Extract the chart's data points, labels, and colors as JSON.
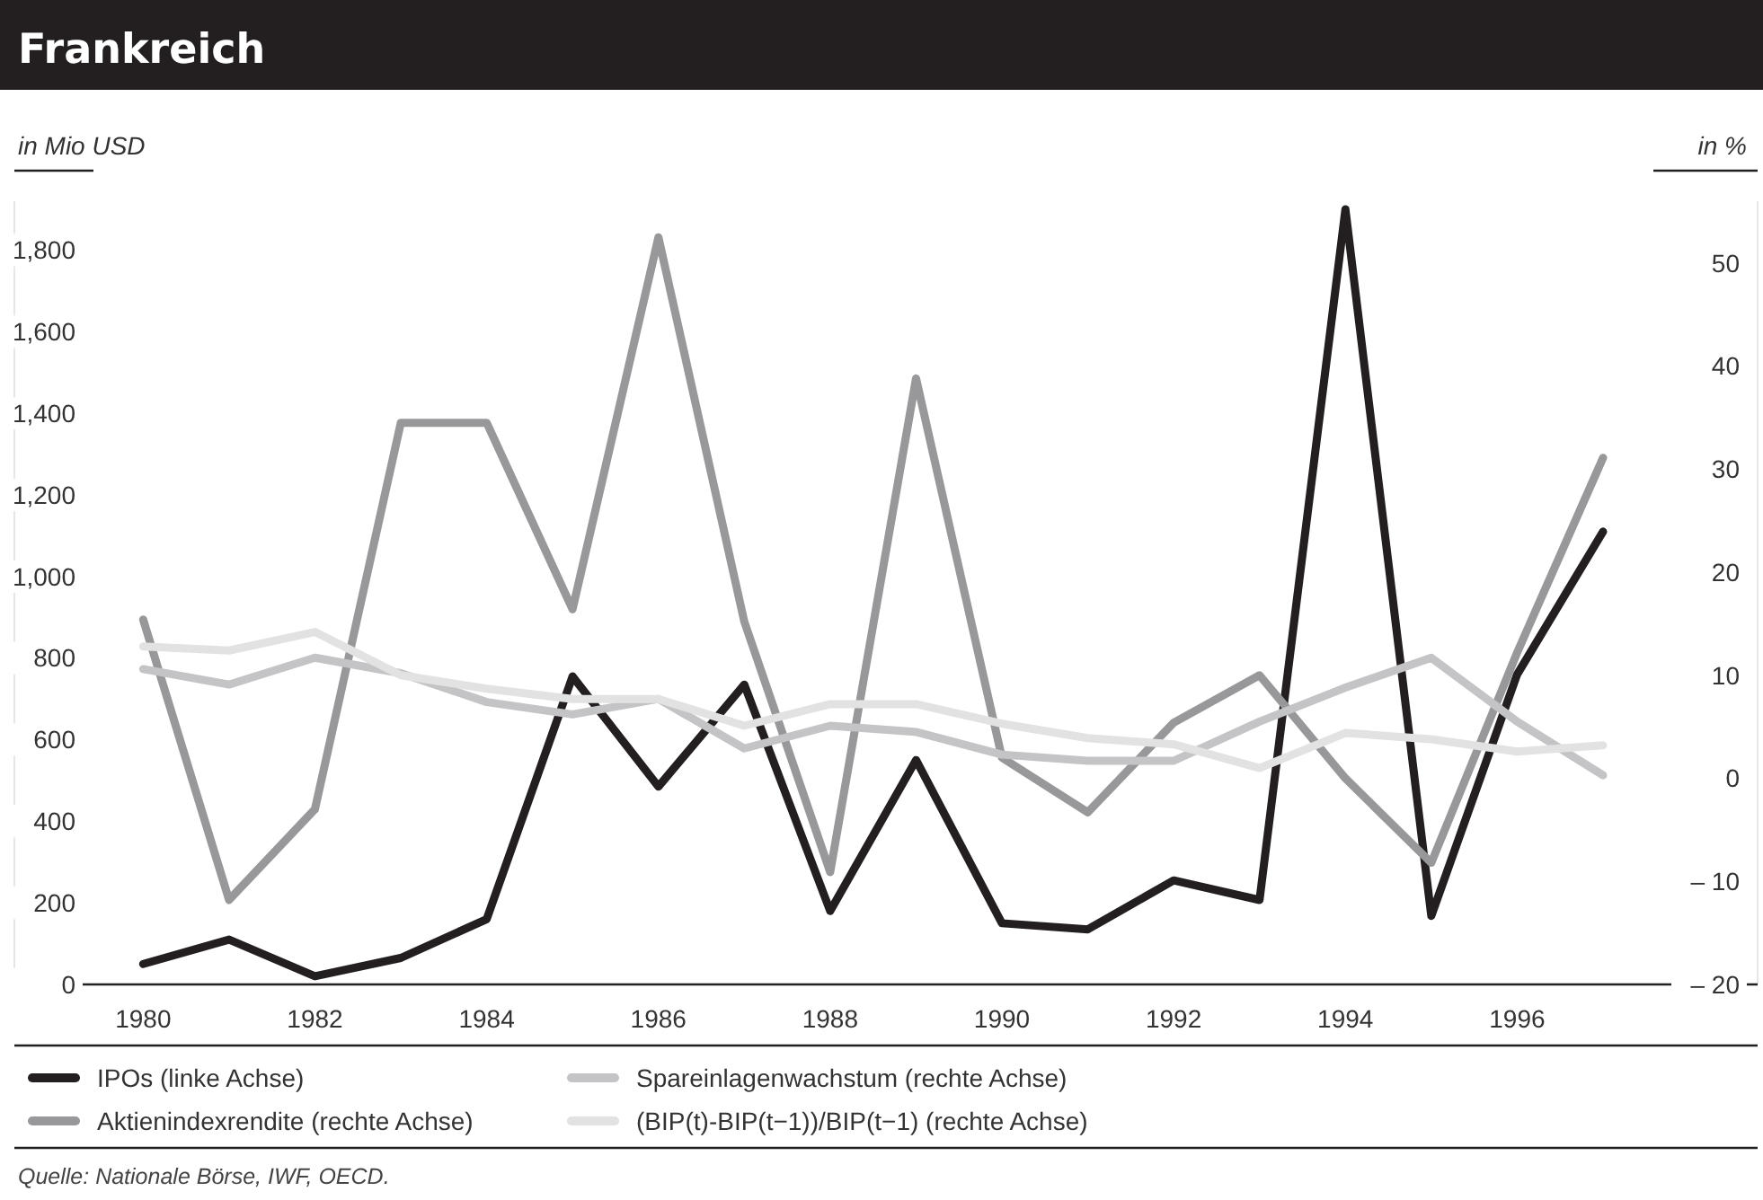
{
  "chart_data": {
    "type": "line",
    "title": "Frankreich",
    "ylabel": "in Mio USD",
    "y2label": "in %",
    "x": [
      1980,
      1981,
      1982,
      1983,
      1984,
      1985,
      1986,
      1987,
      1988,
      1989,
      1990,
      1991,
      1992,
      1993,
      1994,
      1995,
      1996,
      1997
    ],
    "xlim": [
      1978.5,
      1998.8
    ],
    "xticks": [
      1980,
      1982,
      1984,
      1986,
      1988,
      1990,
      1992,
      1994,
      1996
    ],
    "ylim": [
      0,
      1920
    ],
    "yticks": [
      0,
      200,
      400,
      600,
      800,
      {
        "value": 1000,
        "label": "1,000"
      },
      {
        "value": 1200,
        "label": "1,200"
      },
      {
        "value": 1400,
        "label": "1,400"
      },
      {
        "value": 1600,
        "label": "1,600"
      },
      {
        "value": 1800,
        "label": "1,800"
      }
    ],
    "y2lim": [
      -20,
      56
    ],
    "y2ticks": [
      {
        "value": -20,
        "label": "– 20"
      },
      {
        "value": -10,
        "label": "– 10"
      },
      0,
      10,
      20,
      30,
      40,
      50
    ],
    "series": [
      {
        "name": "IPOs (linke Achse)",
        "color": "#231f20",
        "values": [
          50,
          110,
          20,
          65,
          160,
          755,
          485,
          735,
          180,
          550,
          150,
          135,
          255,
          207,
          1900,
          168,
          760,
          1110
        ]
      },
      {
        "name": "Aktienindexrendite (rechte Achse)",
        "color": "#98989a",
        "axis": "y2",
        "values": [
          15.4,
          -11.8,
          -3.0,
          34.5,
          34.5,
          16.4,
          52.5,
          15.2,
          -9.1,
          38.8,
          2.0,
          -3.3,
          5.4,
          10.0,
          0,
          -8.2,
          12.2,
          31.1
        ]
      },
      {
        "name": "Spareinlagenwachstum (rechte Achse)",
        "color": "#c4c4c6",
        "axis": "y2",
        "values": [
          10.6,
          9.1,
          11.7,
          10.2,
          7.4,
          6.2,
          7.7,
          2.9,
          5.1,
          4.5,
          2.3,
          1.7,
          1.7,
          5.5,
          8.8,
          11.7,
          5.5,
          0.3
        ]
      },
      {
        "name": "(BIP(t)-BIP(t−1))/BIP(t−1) (rechte Achse)",
        "color": "#e2e2e3",
        "axis": "y2",
        "values": [
          12.8,
          12.4,
          14.2,
          10.0,
          8.7,
          7.7,
          7.7,
          5.1,
          7.2,
          7.2,
          5.3,
          3.9,
          3.3,
          1.0,
          4.4,
          3.8,
          2.6,
          3.2
        ]
      }
    ],
    "legend": "bottom",
    "grid": false,
    "marker": "none",
    "line_style": "solid",
    "annotations": [
      "Quelle: Nationale Börse, IWF, OECD."
    ]
  }
}
